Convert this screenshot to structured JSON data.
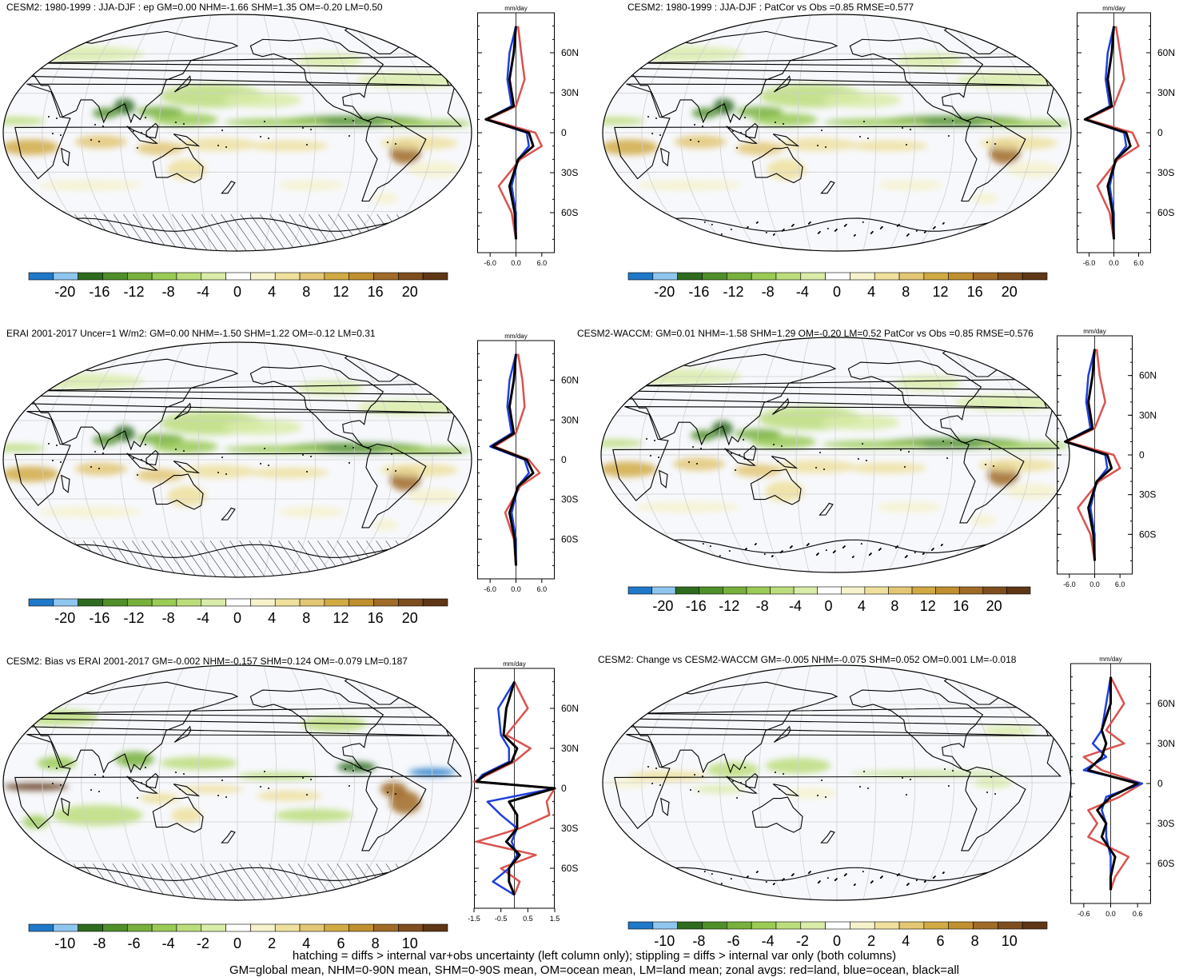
{
  "panels": [
    {
      "id": "p1",
      "title": "CESM2: 1980-1999 : JJA-DJF : ep GM=0.00 NHM=-1.66 SHM=1.35 OM=-0.20 LM=0.50",
      "hatch": true,
      "colorbar": [
        "-20",
        "-16",
        "-12",
        "-8",
        "-4",
        "0",
        "4",
        "8",
        "12",
        "16",
        "20"
      ],
      "zonal": {
        "unit": "mm/day",
        "xticks": [
          "-6.0",
          "0.0",
          "6.0"
        ],
        "xlim": [
          -9,
          9
        ],
        "lat_labels": [
          "60N",
          "30N",
          "0",
          "30S",
          "60S"
        ]
      }
    },
    {
      "id": "p2",
      "title": "CESM2: 1980-1999 : JJA-DJF : PatCor vs Obs =0.85 RMSE=0.577",
      "hatch": false,
      "colorbar": [
        "-20",
        "-16",
        "-12",
        "-8",
        "-4",
        "0",
        "4",
        "8",
        "12",
        "16",
        "20"
      ],
      "zonal": {
        "unit": "mm/day",
        "xticks": [
          "-6.0",
          "0.0",
          "6.0"
        ],
        "xlim": [
          -9,
          9
        ],
        "lat_labels": [
          "60N",
          "30N",
          "0",
          "30S",
          "60S"
        ]
      }
    },
    {
      "id": "p3",
      "title": "ERAI 2001-2017 Uncer=1 W/m2: GM=0.00 NHM=-1.50 SHM=1.22 OM=-0.12 LM=0.31",
      "hatch": true,
      "colorbar": [
        "-20",
        "-16",
        "-12",
        "-8",
        "-4",
        "0",
        "4",
        "8",
        "12",
        "16",
        "20"
      ],
      "zonal": {
        "unit": "mm/day",
        "xticks": [
          "-6.0",
          "0.0",
          "6.0"
        ],
        "xlim": [
          -9,
          9
        ],
        "lat_labels": [
          "60N",
          "30N",
          "0",
          "30S",
          "60S"
        ]
      }
    },
    {
      "id": "p4",
      "title": "CESM2-WACCM: GM=0.01 NHM=-1.58 SHM=1.29 OM=-0.20 LM=0.52 PatCor vs Obs =0.85 RMSE=0.576",
      "hatch": false,
      "colorbar": [
        "-20",
        "-16",
        "-12",
        "-8",
        "-4",
        "0",
        "4",
        "8",
        "12",
        "16",
        "20"
      ],
      "zonal": {
        "unit": "mm/day",
        "xticks": [
          "-6.0",
          "0.0",
          "6.0"
        ],
        "xlim": [
          -9,
          9
        ],
        "lat_labels": [
          "60N",
          "30N",
          "0",
          "30S",
          "60S"
        ]
      }
    },
    {
      "id": "p5",
      "title": "CESM2: Bias vs ERAI 2001-2017 GM=-0.002 NHM=-0.157 SHM=0.124 OM=-0.079 LM=0.187",
      "hatch": true,
      "colorbar": [
        "-10",
        "-8",
        "-6",
        "-4",
        "-2",
        "0",
        "2",
        "4",
        "6",
        "8",
        "10"
      ],
      "zonal": {
        "unit": "mm/day",
        "xticks": [
          "-1.5",
          "-0.5",
          "0.5",
          "1.5"
        ],
        "xlim": [
          -1.5,
          1.5
        ],
        "lat_labels": [
          "60N",
          "30N",
          "0",
          "30S",
          "60S"
        ]
      }
    },
    {
      "id": "p6",
      "title": "CESM2: Change vs CESM2-WACCM GM=-0.005 NHM=-0.075 SHM=0.052 OM=0.001 LM=-0.018",
      "hatch": false,
      "colorbar": [
        "-10",
        "-8",
        "-6",
        "-4",
        "-2",
        "0",
        "2",
        "4",
        "6",
        "8",
        "10"
      ],
      "zonal": {
        "unit": "mm/day",
        "xticks": [
          "-0.6",
          "0.0",
          "0.6"
        ],
        "xlim": [
          -0.9,
          0.9
        ],
        "lat_labels": [
          "60N",
          "30N",
          "0",
          "30S",
          "60S"
        ]
      }
    }
  ],
  "footer": {
    "line1": "hatching = diffs > internal var+obs uncertainty (left column only); stippling = diffs > internal var only (both columns)",
    "line2": "GM=global mean, NHM=0-90N mean, SHM=0-90S mean, OM=ocean mean, LM=land mean; zonal avgs: red=land, blue=ocean, black=all"
  },
  "colors": {
    "scale": [
      "#1f78c8",
      "#8ec6ef",
      "#2e6b1e",
      "#4f8f2a",
      "#77b03c",
      "#9acb55",
      "#bcdd7c",
      "#d9eca8",
      "#ffffff",
      "#f6f2cc",
      "#efe19d",
      "#e3c774",
      "#d1aa44",
      "#c08f2f",
      "#a06a27",
      "#7e4e1f",
      "#5f3716"
    ],
    "land": "#d9534f",
    "ocean": "#1f3fdc",
    "all": "#000000"
  },
  "chart_data": [
    {
      "type": "heatmap",
      "title": "CESM2: 1980-1999 : JJA-DJF : ep GM=0.00 NHM=-1.66 SHM=1.35 OM=-0.20 LM=0.50",
      "xlabel": "",
      "ylabel": "",
      "colorbar_ticks": [
        -20,
        -16,
        -12,
        -8,
        -4,
        0,
        4,
        8,
        12,
        16,
        20
      ],
      "zonal_series": [
        {
          "name": "red",
          "lat": [
            80,
            60,
            40,
            20,
            10,
            0,
            -10,
            -20,
            -40,
            -60,
            -80
          ],
          "values": [
            0.5,
            1.2,
            2.0,
            0,
            -6.5,
            4.5,
            6.0,
            1.0,
            -4.0,
            -1.0,
            0
          ]
        },
        {
          "name": "blue",
          "lat": [
            80,
            60,
            40,
            20,
            10,
            0,
            -10,
            -20,
            -40,
            -60,
            -80
          ],
          "values": [
            0,
            -1.5,
            -2.0,
            -1.0,
            -7.0,
            2.5,
            3.0,
            0.5,
            -1.0,
            0,
            0
          ]
        },
        {
          "name": "black",
          "lat": [
            80,
            60,
            40,
            20,
            10,
            0,
            -10,
            -20,
            -40,
            -60,
            -80
          ],
          "values": [
            0,
            -0.5,
            -1.5,
            -0.5,
            -7.0,
            3.0,
            4.0,
            0.5,
            -1.5,
            -0.3,
            0
          ]
        }
      ]
    },
    {
      "type": "heatmap",
      "title": "CESM2: 1980-1999 : JJA-DJF : PatCor vs Obs =0.85 RMSE=0.577",
      "xlabel": "",
      "ylabel": "",
      "colorbar_ticks": [
        -20,
        -16,
        -12,
        -8,
        -4,
        0,
        4,
        8,
        12,
        16,
        20
      ],
      "zonal_series": [
        {
          "name": "red",
          "lat": [
            80,
            60,
            40,
            20,
            10,
            0,
            -10,
            -20,
            -40,
            -60,
            -80
          ],
          "values": [
            0.5,
            1.5,
            2.5,
            0,
            -6.5,
            4.5,
            6.0,
            1.0,
            -4.0,
            -1.0,
            0
          ]
        },
        {
          "name": "blue",
          "lat": [
            80,
            60,
            40,
            20,
            10,
            0,
            -10,
            -20,
            -40,
            -60,
            -80
          ],
          "values": [
            0,
            -1.5,
            -2.0,
            -1.0,
            -7.0,
            2.5,
            3.0,
            0.5,
            -1.0,
            0,
            0
          ]
        },
        {
          "name": "black",
          "lat": [
            80,
            60,
            40,
            20,
            10,
            0,
            -10,
            -20,
            -40,
            -60,
            -80
          ],
          "values": [
            0,
            -0.5,
            -1.5,
            -0.5,
            -7.0,
            3.0,
            4.0,
            0.5,
            -1.5,
            -0.3,
            0
          ]
        }
      ]
    },
    {
      "type": "heatmap",
      "title": "ERAI 2001-2017 Uncer=1 W/m2: GM=0.00 NHM=-1.50 SHM=1.22 OM=-0.12 LM=0.31",
      "xlabel": "",
      "ylabel": "",
      "colorbar_ticks": [
        -20,
        -16,
        -12,
        -8,
        -4,
        0,
        4,
        8,
        12,
        16,
        20
      ],
      "zonal_series": [
        {
          "name": "red",
          "lat": [
            80,
            60,
            40,
            20,
            10,
            0,
            -10,
            -20,
            -40,
            -60,
            -80
          ],
          "values": [
            0.5,
            1.5,
            2.0,
            0,
            -5.0,
            3.0,
            5.5,
            1.0,
            -2.5,
            -0.5,
            0
          ]
        },
        {
          "name": "blue",
          "lat": [
            80,
            60,
            40,
            20,
            10,
            0,
            -10,
            -20,
            -40,
            -60,
            -80
          ],
          "values": [
            0,
            -1.5,
            -2.0,
            -1.0,
            -6.0,
            2.0,
            3.0,
            0.5,
            -1.0,
            0,
            0
          ]
        },
        {
          "name": "black",
          "lat": [
            80,
            60,
            40,
            20,
            10,
            0,
            -10,
            -20,
            -40,
            -60,
            -80
          ],
          "values": [
            0,
            -0.5,
            -1.5,
            -0.5,
            -5.5,
            2.5,
            4.0,
            0.5,
            -1.5,
            -0.3,
            0
          ]
        }
      ]
    },
    {
      "type": "heatmap",
      "title": "CESM2-WACCM: GM=0.01 NHM=-1.58 SHM=1.29 OM=-0.20 LM=0.52 PatCor vs Obs =0.85 RMSE=0.576",
      "xlabel": "",
      "ylabel": "",
      "colorbar_ticks": [
        -20,
        -16,
        -12,
        -8,
        -4,
        0,
        4,
        8,
        12,
        16,
        20
      ],
      "zonal_series": [
        {
          "name": "red",
          "lat": [
            80,
            60,
            40,
            20,
            10,
            0,
            -10,
            -20,
            -40,
            -60,
            -80
          ],
          "values": [
            0.5,
            1.2,
            2.5,
            0,
            -6.5,
            4.5,
            6.0,
            1.0,
            -4.0,
            -1.0,
            0
          ]
        },
        {
          "name": "blue",
          "lat": [
            80,
            60,
            40,
            20,
            10,
            0,
            -10,
            -20,
            -40,
            -60,
            -80
          ],
          "values": [
            0,
            -1.5,
            -2.0,
            -1.0,
            -7.0,
            2.5,
            3.0,
            0.5,
            -1.0,
            0,
            0
          ]
        },
        {
          "name": "black",
          "lat": [
            80,
            60,
            40,
            20,
            10,
            0,
            -10,
            -20,
            -40,
            -60,
            -80
          ],
          "values": [
            0,
            -0.5,
            -1.5,
            -0.5,
            -7.0,
            3.0,
            4.0,
            0.5,
            -1.5,
            -0.3,
            0
          ]
        }
      ]
    },
    {
      "type": "heatmap",
      "title": "CESM2: Bias vs ERAI 2001-2017 GM=-0.002 NHM=-0.157 SHM=0.124 OM=-0.079 LM=0.187",
      "xlabel": "",
      "ylabel": "",
      "colorbar_ticks": [
        -10,
        -8,
        -6,
        -4,
        -2,
        0,
        2,
        4,
        6,
        8,
        10
      ],
      "zonal_series": [
        {
          "name": "red",
          "lat": [
            80,
            60,
            40,
            30,
            20,
            10,
            5,
            0,
            -10,
            -20,
            -30,
            -40,
            -50,
            -60,
            -70,
            -80
          ],
          "values": [
            0,
            0.5,
            -0.3,
            0.6,
            0,
            -1.0,
            -1.5,
            1.5,
            1.2,
            1.3,
            0.2,
            -1.4,
            0.8,
            -0.5,
            0.2,
            0
          ]
        },
        {
          "name": "blue",
          "lat": [
            80,
            60,
            40,
            30,
            20,
            10,
            5,
            0,
            -10,
            -20,
            -30,
            -40,
            -50,
            -60,
            -70,
            -80
          ],
          "values": [
            0,
            -0.6,
            -0.5,
            -0.2,
            -0.2,
            -1.2,
            -1.4,
            1.5,
            -1.0,
            -0.5,
            0.1,
            -0.1,
            0.1,
            -0.2,
            -0.8,
            0
          ]
        },
        {
          "name": "black",
          "lat": [
            80,
            60,
            40,
            30,
            20,
            10,
            5,
            0,
            -10,
            -20,
            -30,
            -40,
            -50,
            -60,
            -70,
            -80
          ],
          "values": [
            0,
            -0.3,
            -0.4,
            0.1,
            -0.1,
            -1.1,
            -1.4,
            1.5,
            -0.2,
            0.1,
            0.1,
            -0.3,
            0.2,
            -0.2,
            -0.2,
            0
          ]
        }
      ]
    },
    {
      "type": "heatmap",
      "title": "CESM2: Change vs CESM2-WACCM GM=-0.005 NHM=-0.075 SHM=0.052 OM=0.001 LM=-0.018",
      "xlabel": "",
      "ylabel": "",
      "colorbar_ticks": [
        -10,
        -8,
        -6,
        -4,
        -2,
        0,
        2,
        4,
        6,
        8,
        10
      ],
      "zonal_series": [
        {
          "name": "red",
          "lat": [
            80,
            60,
            40,
            30,
            20,
            10,
            0,
            -10,
            -20,
            -30,
            -40,
            -55,
            -70,
            -80
          ],
          "values": [
            0,
            0.3,
            -0.1,
            0.3,
            -0.6,
            -0.2,
            0.7,
            0.2,
            -0.5,
            -0.3,
            -0.5,
            0.4,
            0.1,
            0
          ]
        },
        {
          "name": "blue",
          "lat": [
            80,
            60,
            40,
            30,
            20,
            10,
            0,
            -10,
            -20,
            -30,
            -40,
            -55,
            -70,
            -80
          ],
          "values": [
            0,
            -0.1,
            -0.2,
            -0.4,
            -0.1,
            -0.6,
            0.7,
            -0.1,
            -0.2,
            -0.1,
            -0.1,
            0,
            0,
            0
          ]
        },
        {
          "name": "black",
          "lat": [
            80,
            60,
            40,
            30,
            20,
            10,
            0,
            -10,
            -20,
            -30,
            -40,
            -55,
            -70,
            -80
          ],
          "values": [
            0,
            0,
            -0.2,
            -0.1,
            -0.2,
            -0.5,
            0.6,
            0,
            -0.3,
            -0.1,
            -0.2,
            0.1,
            0,
            0
          ]
        }
      ]
    }
  ]
}
